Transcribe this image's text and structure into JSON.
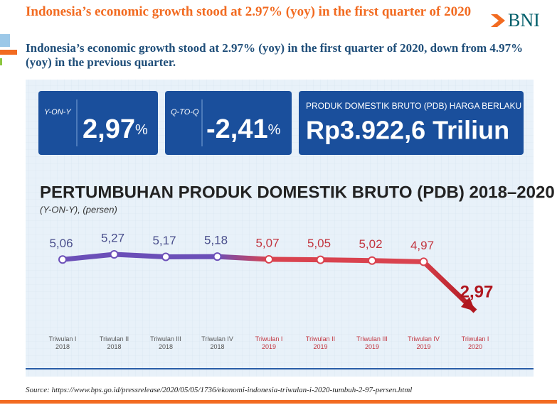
{
  "header": {
    "title": "Indonesia’s economic growth stood at 2.97% (yoy) in the first quarter of 2020",
    "logo": "BNI",
    "subtitle": "Indonesia’s economic growth stood at 2.97% (yoy) in the first quarter of 2020, down from 4.97% (yoy) in the previous quarter."
  },
  "kpis": [
    {
      "label": "Y-ON-Y",
      "value": "2,97",
      "unit": "%"
    },
    {
      "label": "Q-TO-Q",
      "value": "-2,41",
      "unit": "%"
    },
    {
      "label": "PRODUK DOMESTIK BRUTO (PDB) HARGA BERLAKU",
      "value": "Rp3.922,6 Triliun"
    }
  ],
  "chart_data": {
    "type": "line",
    "title": "PERTUMBUHAN PRODUK DOMESTIK BRUTO (PDB) 2018–2020",
    "subtitle": "(Y-ON-Y), (persen)",
    "categories": [
      "Triwulan I 2018",
      "Triwulan II 2018",
      "Triwulan III 2018",
      "Triwulan IV 2018",
      "Triwulan I 2019",
      "Triwulan II 2019",
      "Triwulan III 2019",
      "Triwulan IV 2019",
      "Triwulan I 2020"
    ],
    "values": [
      5.06,
      5.27,
      5.17,
      5.18,
      5.07,
      5.05,
      5.02,
      4.97,
      2.97
    ],
    "value_labels": [
      "5,06",
      "5,27",
      "5,17",
      "5,18",
      "5,07",
      "5,05",
      "5,02",
      "4,97",
      "2,97"
    ],
    "point_colors": [
      "#6b4fb8",
      "#6b4fb8",
      "#6b4fb8",
      "#6b4fb8",
      "#d9434f",
      "#d9434f",
      "#d9434f",
      "#d9434f",
      "#b0171f"
    ]
  },
  "source": "Source: https://www.bps.go.id/pressrelease/2020/05/05/1736/ekonomi-indonesia-triwulan-i-2020-tumbuh-2-97-persen.html"
}
